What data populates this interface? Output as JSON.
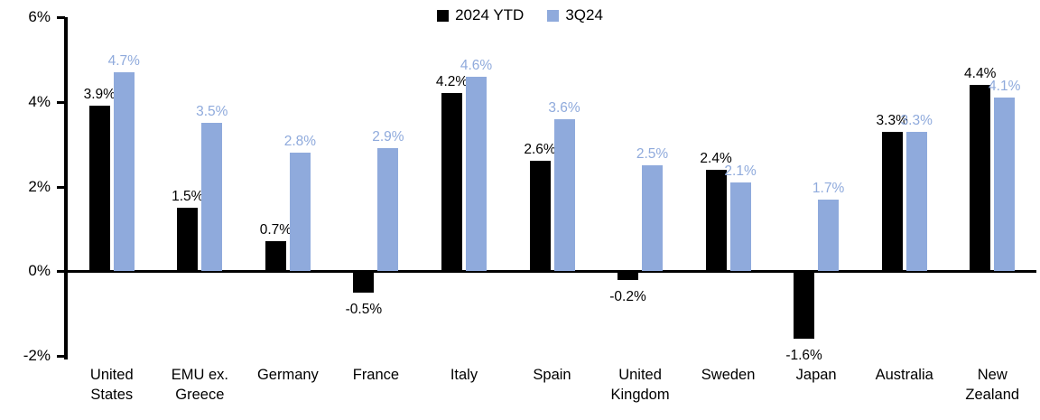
{
  "chart_data": {
    "type": "bar",
    "title": "",
    "categories": [
      "United States",
      "EMU ex. Greece",
      "Germany",
      "France",
      "Italy",
      "Spain",
      "United Kingdom",
      "Sweden",
      "Japan",
      "Australia",
      "New Zealand"
    ],
    "category_display": [
      "United\nStates",
      "EMU ex.\nGreece",
      "Germany",
      "France",
      "Italy",
      "Spain",
      "United\nKingdom",
      "Sweden",
      "Japan",
      "Australia",
      "New\nZealand"
    ],
    "series": [
      {
        "name": "2024 YTD",
        "color": "#000000",
        "label_color": "#000000",
        "values": [
          3.9,
          1.5,
          0.7,
          -0.5,
          4.2,
          2.6,
          -0.2,
          2.4,
          -1.6,
          3.3,
          4.4
        ],
        "labels": [
          "3.9%",
          "1.5%",
          "0.7%",
          "-0.5%",
          "4.2%",
          "2.6%",
          "-0.2%",
          "2.4%",
          "-1.6%",
          "3.3%",
          "4.4%"
        ]
      },
      {
        "name": "3Q24",
        "color": "#8FAADC",
        "label_color": "#8FAADC",
        "values": [
          4.7,
          3.5,
          2.8,
          2.9,
          4.6,
          3.6,
          2.5,
          2.1,
          1.7,
          3.3,
          4.1
        ],
        "labels": [
          "4.7%",
          "3.5%",
          "2.8%",
          "2.9%",
          "4.6%",
          "3.6%",
          "2.5%",
          "2.1%",
          "1.7%",
          "3.3%",
          "4.1%"
        ]
      }
    ],
    "y_axis": {
      "min": -2,
      "max": 6,
      "step": 2,
      "tick_labels_top_to_bottom": [
        "6%",
        "4%",
        "2%",
        "0%",
        "-2%"
      ]
    },
    "legend_position": "top-center",
    "grid": false,
    "data_labels_shown": true
  }
}
